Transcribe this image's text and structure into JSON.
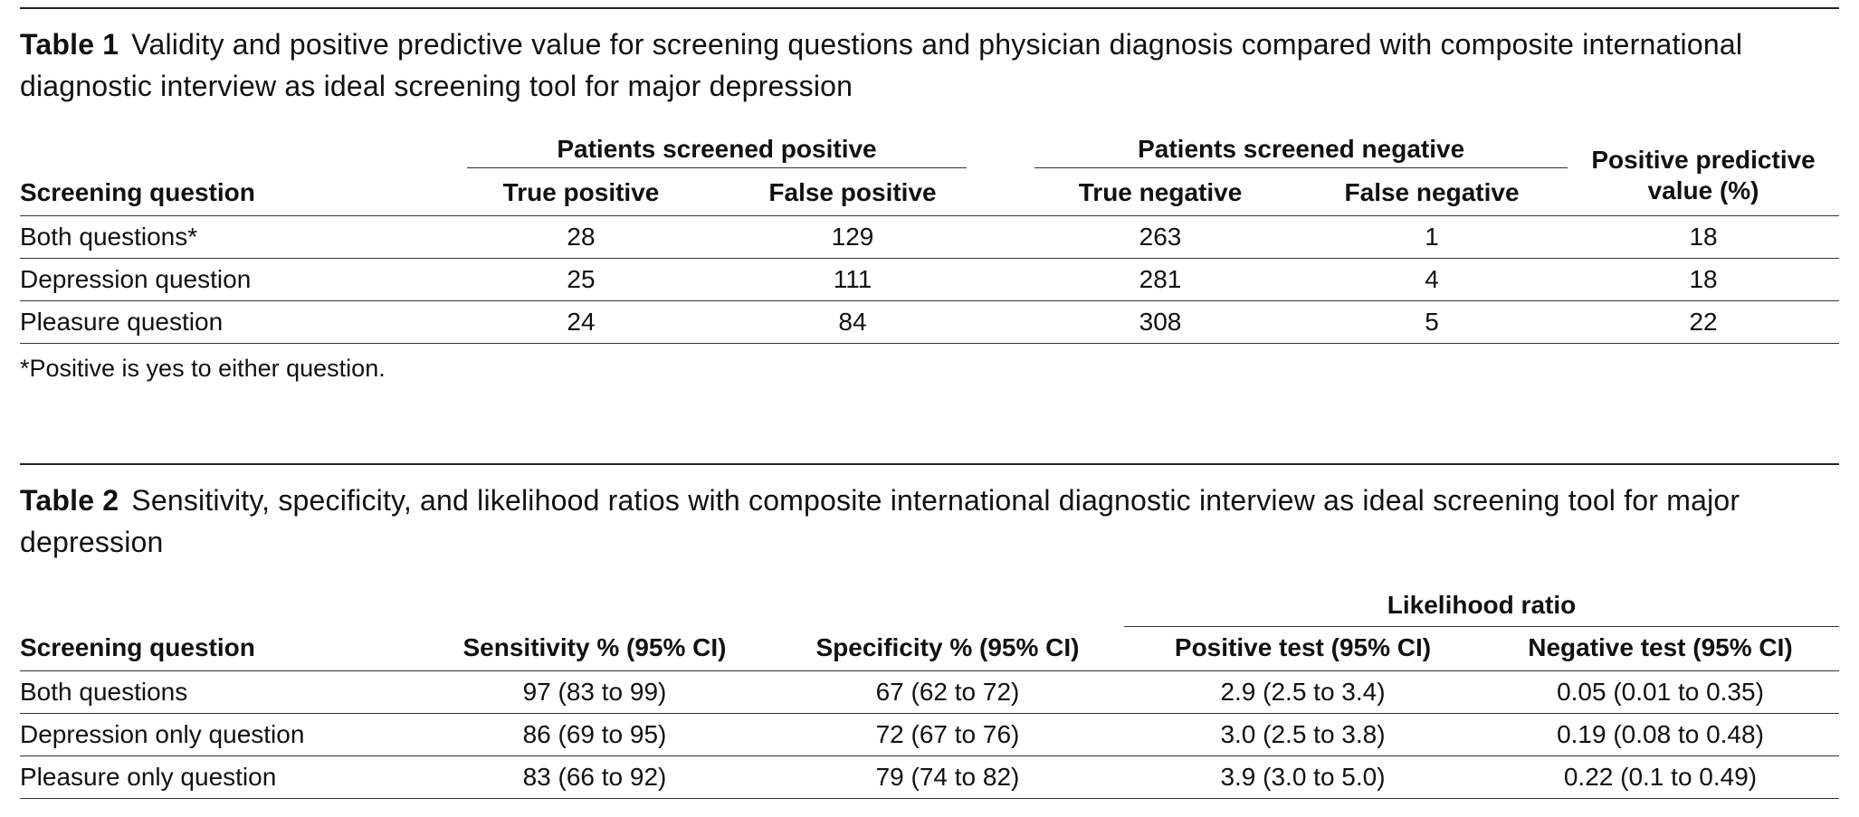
{
  "table1": {
    "label": "Table 1",
    "title": "Validity and positive predictive value for screening questions and physician diagnosis compared with composite international diagnostic interview as ideal screening tool for major depression",
    "group_positive": "Patients screened positive",
    "group_negative": "Patients screened negative",
    "headers": {
      "question": "Screening question",
      "true_positive": "True positive",
      "false_positive": "False positive",
      "true_negative": "True negative",
      "false_negative": "False negative",
      "ppv_line1": "Positive predictive",
      "ppv_line2": "value (%)"
    },
    "rows": [
      {
        "question": "Both questions*",
        "tp": "28",
        "fp": "129",
        "tn": "263",
        "fn": "1",
        "ppv": "18"
      },
      {
        "question": "Depression question",
        "tp": "25",
        "fp": "111",
        "tn": "281",
        "fn": "4",
        "ppv": "18"
      },
      {
        "question": "Pleasure question",
        "tp": "24",
        "fp": "84",
        "tn": "308",
        "fn": "5",
        "ppv": "22"
      }
    ],
    "footnote": "*Positive is yes to either question."
  },
  "table2": {
    "label": "Table 2",
    "title": "Sensitivity, specificity, and likelihood ratios with composite international diagnostic interview as ideal screening tool for major depression",
    "group_likelihood": "Likelihood ratio",
    "headers": {
      "question": "Screening question",
      "sensitivity": "Sensitivity % (95% CI)",
      "specificity": "Specificity % (95% CI)",
      "positive_test": "Positive test (95% CI)",
      "negative_test": "Negative test (95% CI)"
    },
    "rows": [
      {
        "question": "Both questions",
        "sens": "97 (83 to 99)",
        "spec": "67 (62 to 72)",
        "pos": "2.9 (2.5 to 3.4)",
        "neg": "0.05 (0.01 to 0.35)"
      },
      {
        "question": "Depression only question",
        "sens": "86 (69 to 95)",
        "spec": "72 (67 to 76)",
        "pos": "3.0 (2.5 to 3.8)",
        "neg": "0.19 (0.08 to 0.48)"
      },
      {
        "question": "Pleasure only question",
        "sens": "83 (66 to 92)",
        "spec": "79 (74 to 82)",
        "pos": "3.9 (3.0 to 5.0)",
        "neg": "0.22 (0.1 to 0.49)"
      }
    ]
  }
}
